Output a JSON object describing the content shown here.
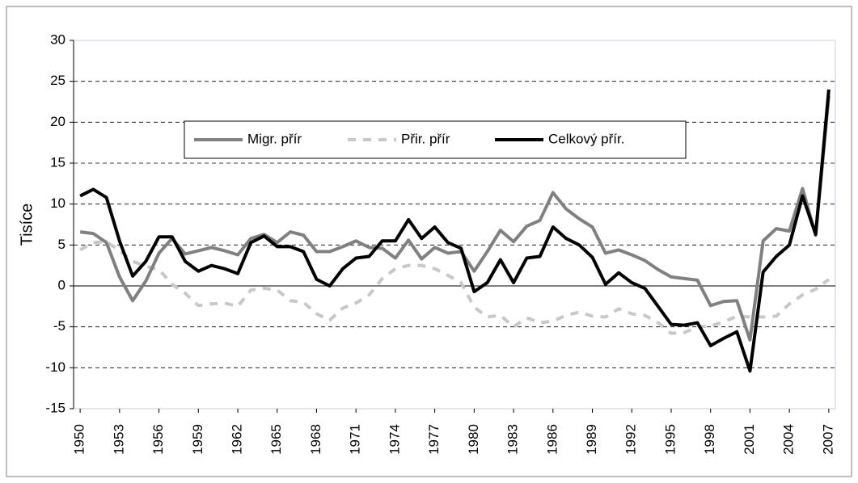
{
  "chart_data": {
    "type": "line",
    "y_label": "Tisíce",
    "x": [
      1950,
      1951,
      1952,
      1953,
      1954,
      1955,
      1956,
      1957,
      1958,
      1959,
      1960,
      1961,
      1962,
      1963,
      1964,
      1965,
      1966,
      1967,
      1968,
      1969,
      1970,
      1971,
      1972,
      1973,
      1974,
      1975,
      1976,
      1977,
      1978,
      1979,
      1980,
      1981,
      1982,
      1983,
      1984,
      1985,
      1986,
      1987,
      1988,
      1989,
      1990,
      1991,
      1992,
      1993,
      1994,
      1995,
      1996,
      1997,
      1998,
      1999,
      2000,
      2001,
      2002,
      2003,
      2004,
      2005,
      2006,
      2007
    ],
    "xlim": [
      1949.5,
      2007.5
    ],
    "xticks": [
      1950,
      1953,
      1956,
      1959,
      1962,
      1965,
      1968,
      1971,
      1974,
      1977,
      1980,
      1983,
      1986,
      1989,
      1992,
      1995,
      1998,
      2001,
      2004,
      2007
    ],
    "ylim": [
      -15,
      30
    ],
    "yticks": [
      -15,
      -10,
      -5,
      0,
      5,
      10,
      15,
      20,
      25,
      30
    ],
    "grid": true,
    "series": [
      {
        "name": "Migr. přír",
        "color": "#808080",
        "dash": false,
        "values": [
          6.6,
          6.4,
          5.3,
          1.1,
          -1.8,
          0.6,
          4,
          5.8,
          3.9,
          4.3,
          4.7,
          4.3,
          3.8,
          5.8,
          6.3,
          5.3,
          6.6,
          6.2,
          4.2,
          4.2,
          4.8,
          5.5,
          4.7,
          4.6,
          3.4,
          5.6,
          3.3,
          4.7,
          4,
          4.2,
          1.8,
          4.2,
          6.8,
          5.4,
          7.3,
          8,
          11.4,
          9.4,
          8.2,
          7.2,
          4,
          4.4,
          3.8,
          3.1,
          2,
          1.1,
          0.9,
          0.7,
          -2.4,
          -1.9,
          -1.8,
          -6.6,
          5.5,
          7,
          6.7,
          11.9,
          6.2,
          23.2
        ]
      },
      {
        "name": "Přir. přír",
        "color": "#c8c8c8",
        "dash": true,
        "values": [
          4.4,
          5.3,
          5.4,
          4.3,
          3,
          2.4,
          2,
          0.2,
          -0.9,
          -2.4,
          -2.2,
          -2.1,
          -2.5,
          -0.5,
          -0.3,
          -0.5,
          -1.8,
          -2,
          -3.4,
          -4.2,
          -2.7,
          -2.1,
          -1.1,
          0.9,
          2.1,
          2.5,
          2.5,
          2.1,
          1.3,
          0.4,
          -2.6,
          -3.8,
          -3.6,
          -5,
          -3.9,
          -4.5,
          -4.3,
          -3.6,
          -3.2,
          -3.7,
          -3.8,
          -2.8,
          -3.4,
          -3.6,
          -4.5,
          -5.8,
          -5.7,
          -5,
          -4.9,
          -4.4,
          -3.7,
          -3.8,
          -3.8,
          -3.7,
          -2.2,
          -1.1,
          -0.4,
          0.8
        ]
      },
      {
        "name": "Celkový přír.",
        "color": "#000000",
        "dash": false,
        "values": [
          11,
          11.8,
          10.8,
          5.5,
          1.2,
          3,
          6,
          6,
          3,
          1.8,
          2.5,
          2.1,
          1.5,
          5.3,
          6.1,
          4.8,
          4.8,
          4.2,
          0.8,
          0,
          2.1,
          3.4,
          3.6,
          5.5,
          5.5,
          8.1,
          5.8,
          7.2,
          5.3,
          4.6,
          -0.7,
          0.4,
          3.2,
          0.4,
          3.4,
          3.6,
          7.2,
          5.8,
          5,
          3.5,
          0.2,
          1.6,
          0.4,
          -0.3,
          -2.5,
          -4.7,
          -4.8,
          -4.5,
          -7.3,
          -6.4,
          -5.6,
          -10.4,
          1.7,
          3.6,
          5,
          11,
          6.3,
          24
        ]
      }
    ]
  }
}
